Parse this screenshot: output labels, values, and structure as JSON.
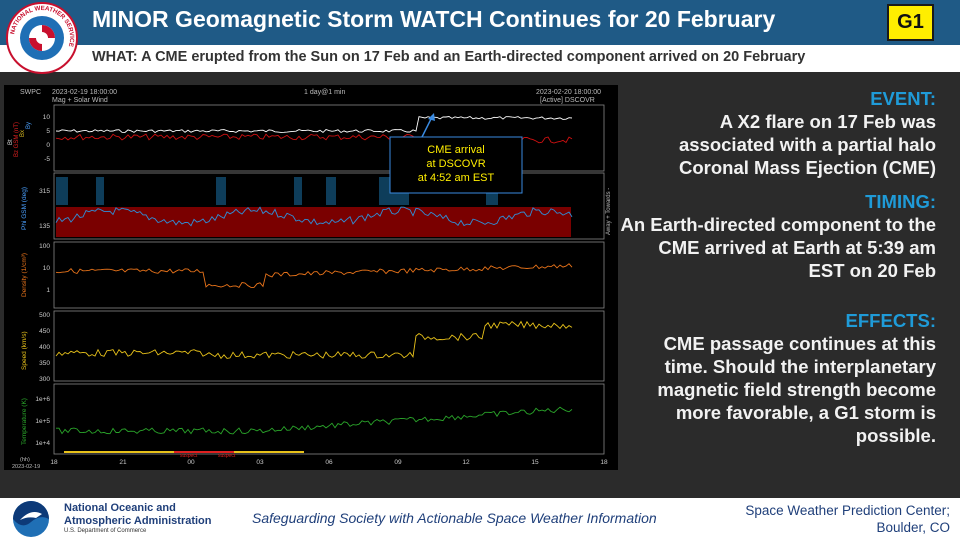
{
  "header": {
    "logo_text": "NATIONAL WEATHER SERVICE",
    "title": "MINOR Geomagnetic Storm WATCH Continues for 20 February",
    "badge": "G1",
    "subtitle": "WHAT: A CME erupted from the Sun on 17 Feb and an Earth-directed component arrived on 20 February"
  },
  "plot": {
    "agency": "SWPC",
    "start": "2023-02-19 18:00:00",
    "end": "2023-02-20 18:00:00",
    "span": "1 day@1 min",
    "source": "Mag + Solar Wind",
    "active": "[Active] DSCOVR",
    "annotation": [
      "CME arrival",
      "at DSCOVR",
      "at 4:52 am EST"
    ],
    "panel_labels": [
      "Bt",
      "Phi GSM (deg)",
      "Density (1/cm³)",
      "Speed (km/s)",
      "Temperature (K)"
    ],
    "mag_legend": [
      "Bz GSM (nT)",
      "Bx",
      "By"
    ],
    "phi_side_label": "Away + Towards -",
    "y_ticks": {
      "mag": [
        "10",
        "5",
        "0",
        "-5"
      ],
      "phi": [
        "315",
        "135"
      ],
      "density": [
        "100",
        "10",
        "1"
      ],
      "speed": [
        "500",
        "450",
        "400",
        "350",
        "300"
      ],
      "temp": [
        "1e+6",
        "1e+5",
        "1e+4"
      ]
    },
    "x_ticks": [
      "18",
      "21",
      "00",
      "03",
      "06",
      "09",
      "12",
      "15",
      "18"
    ],
    "x_unit": "(hh)",
    "x_date": "2023-02-19",
    "suspect_labels": [
      "suspect",
      "suspect"
    ]
  },
  "event": {
    "heading": "EVENT:",
    "body": "A X2 flare on 17 Feb was associated with a partial halo Coronal Mass Ejection (CME)"
  },
  "timing": {
    "heading": "TIMING:",
    "body": "An Earth-directed component to the CME arrived at Earth at 5:39 am EST on 20 Feb"
  },
  "effects": {
    "heading": "EFFECTS:",
    "body": "CME passage continues at this time. Should the interplanetary magnetic field strength become more favorable, a G1 storm is possible."
  },
  "footer": {
    "noaa_line1": "National Oceanic and",
    "noaa_line2": "Atmospheric Administration",
    "noaa_dept": "U.S. Department of Commerce",
    "tagline": "Safeguarding Society with  Actionable Space Weather Information",
    "swpc_line1": "Space Weather Prediction Center;",
    "swpc_line2": "Boulder, CO"
  },
  "colors": {
    "header_blue": "#1f5a86",
    "accent_blue": "#1f9bd8",
    "badge_yellow": "#ffee00",
    "density_orange": "#e8731a",
    "speed_yellow": "#e8c21a",
    "temp_green": "#2aa52a",
    "bz_red": "#d01010",
    "phi_blue": "#2f8fd8"
  }
}
